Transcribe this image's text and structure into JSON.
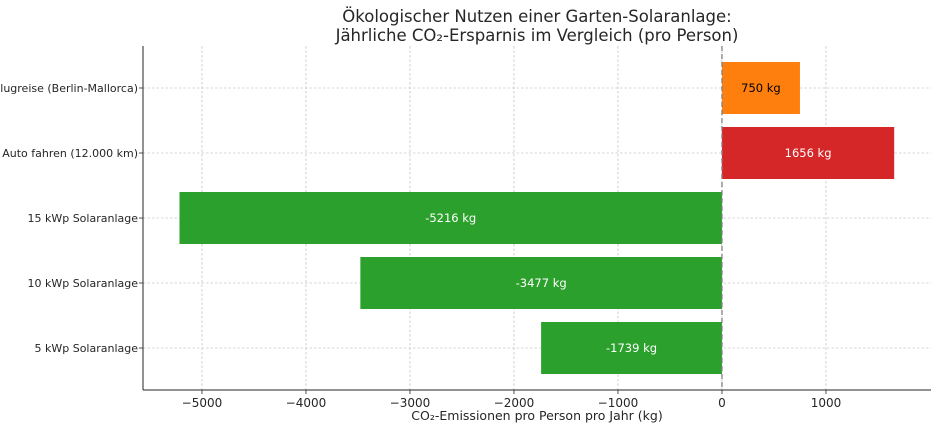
{
  "chart_data": {
    "type": "bar",
    "orientation": "horizontal",
    "title": "Ökologischer Nutzen einer Garten-Solaranlage:",
    "subtitle": "Jährliche CO₂-Ersparnis im Vergleich (pro Person)",
    "xlabel": "CO₂-Emissionen pro Person pro Jahr (kg)",
    "ylabel": "",
    "categories": [
      "5 kWp Solaranlage",
      "10 kWp Solaranlage",
      "15 kWp Solaranlage",
      "Auto fahren (12.000 km)",
      "Flugreise (Berlin-Mallorca)"
    ],
    "values": [
      -1739,
      -3477,
      -5216,
      1656,
      750
    ],
    "data_labels": [
      "-1739 kg",
      "-3477 kg",
      "-5216 kg",
      "1656 kg",
      "750 kg"
    ],
    "colors": [
      "#2ca02c",
      "#2ca02c",
      "#2ca02c",
      "#d62728",
      "#ff7f0e"
    ],
    "label_colors": [
      "#ffffff",
      "#ffffff",
      "#ffffff",
      "#ffffff",
      "#000000"
    ],
    "xticks": [
      -5000,
      -4000,
      -3000,
      -2000,
      -1000,
      0,
      1000
    ],
    "xtick_labels": [
      "−5000",
      "−4000",
      "−3000",
      "−2000",
      "−1000",
      "0",
      "1000"
    ],
    "xlim": [
      -5567,
      2010
    ],
    "grid": true,
    "reference_line": {
      "x": 0,
      "style": "dashed",
      "color": "#808080"
    }
  }
}
